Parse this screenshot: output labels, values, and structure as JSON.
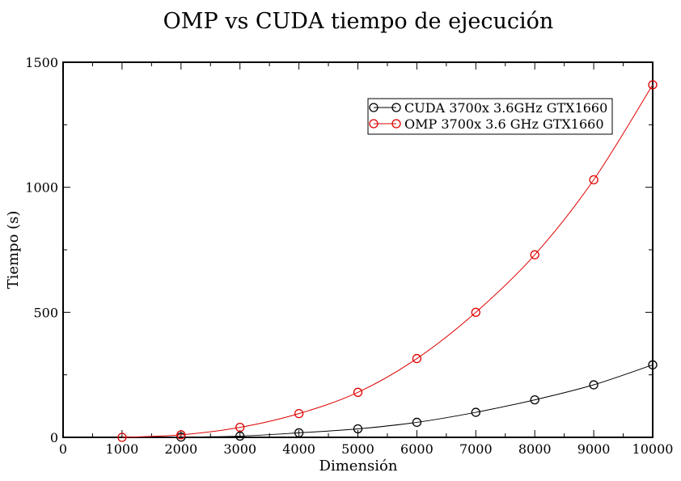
{
  "chart_data": {
    "type": "line",
    "title": "OMP vs CUDA tiempo de ejecución",
    "xlabel": "Dimensión",
    "ylabel": "Tiempo (s)",
    "xlim": [
      0,
      10000
    ],
    "ylim": [
      0,
      1500
    ],
    "x_ticks": [
      "0",
      "1000",
      "2000",
      "3000",
      "4000",
      "5000",
      "6000",
      "7000",
      "8000",
      "9000",
      "10000"
    ],
    "y_ticks": [
      "0",
      "500",
      "1000",
      "1500"
    ],
    "grid": false,
    "legend_position": "top-right",
    "marker": "circle",
    "series": [
      {
        "name": "CUDA 3700x 3.6GHz GTX1660",
        "color": "#000000",
        "x": [
          2000,
          3000,
          4000,
          5000,
          6000,
          7000,
          8000,
          9000,
          10000
        ],
        "y": [
          1,
          5,
          18,
          34,
          60,
          100,
          150,
          210,
          290
        ]
      },
      {
        "name": "OMP 3700x 3.6 GHz GTX1660",
        "color": "#dd0000",
        "x": [
          1000,
          2000,
          3000,
          4000,
          5000,
          6000,
          7000,
          8000,
          9000,
          10000
        ],
        "y": [
          0,
          10,
          40,
          95,
          180,
          315,
          500,
          730,
          1030,
          1410
        ]
      }
    ]
  }
}
